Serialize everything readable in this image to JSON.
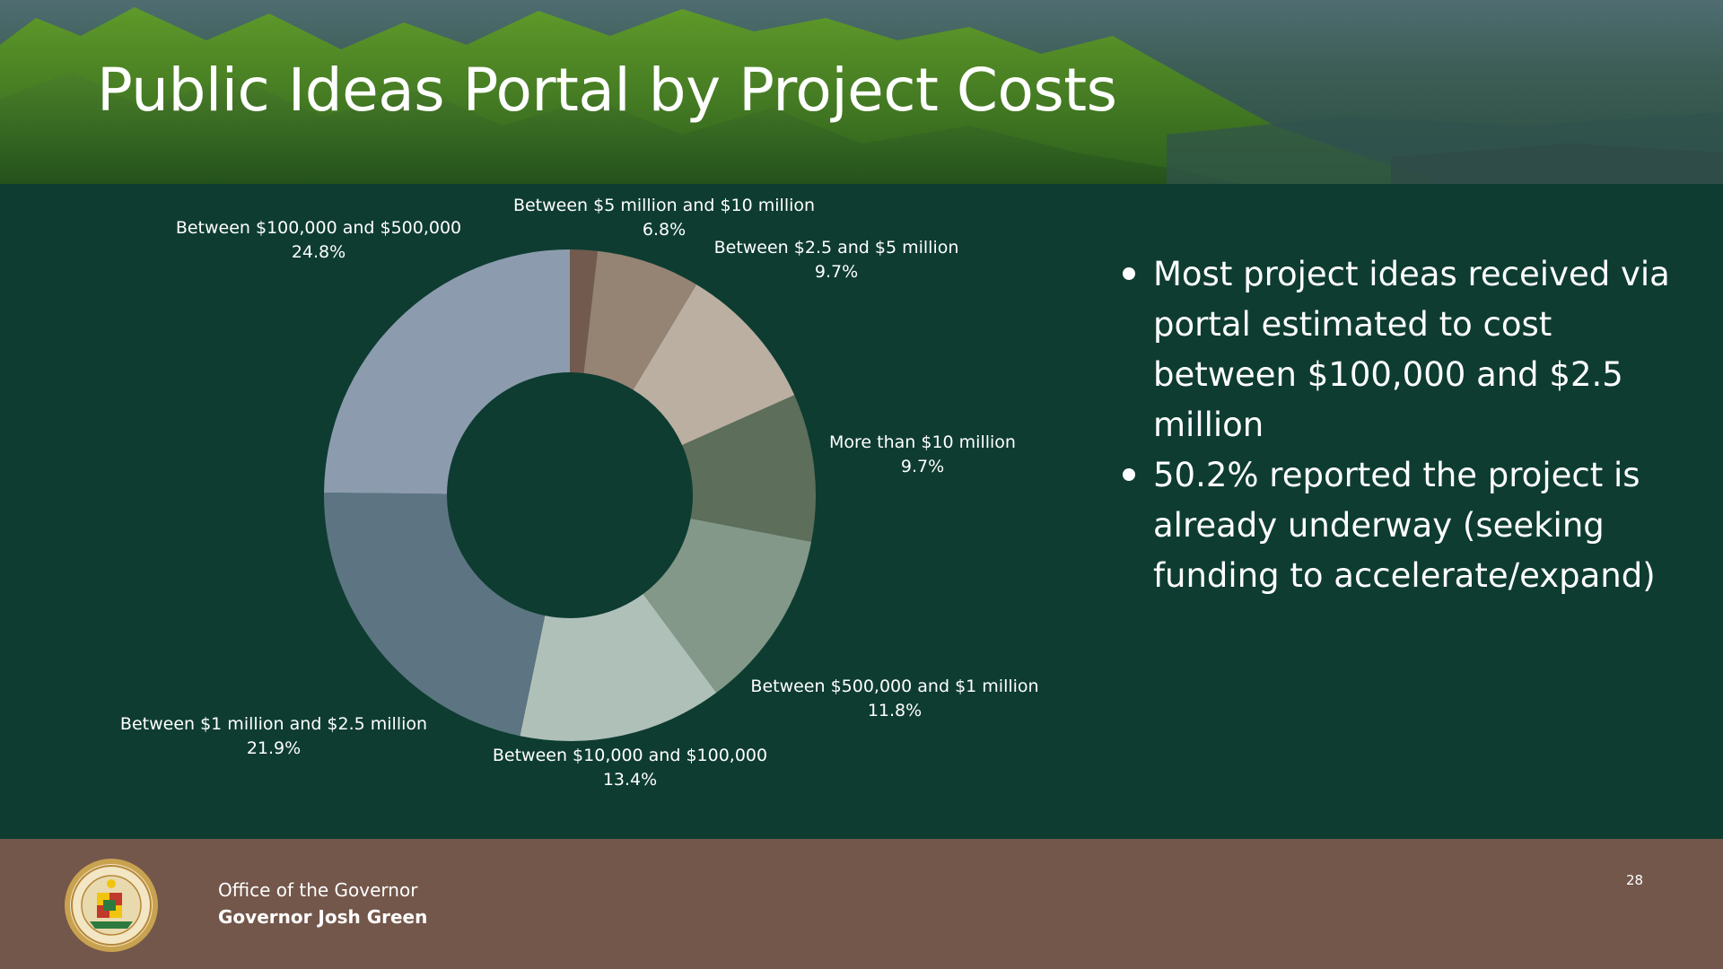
{
  "title": "Public Ideas Portal by Project Costs",
  "chart_data": {
    "type": "donut",
    "title": "",
    "slices": [
      {
        "label": "",
        "value": 1.8,
        "value_label": "",
        "color": "#735a4f"
      },
      {
        "label": "Between $5 million and $10 million",
        "value": 6.8,
        "value_label": "6.8%",
        "color": "#958373"
      },
      {
        "label": "Between $2.5 and $5 million",
        "value": 9.7,
        "value_label": "9.7%",
        "color": "#bbafa1"
      },
      {
        "label": "More than $10 million",
        "value": 9.7,
        "value_label": "9.7%",
        "color": "#5d6e5a"
      },
      {
        "label": "Between $500,000 and $1 million",
        "value": 11.8,
        "value_label": "11.8%",
        "color": "#839888"
      },
      {
        "label": "Between $10,000 and $100,000",
        "value": 13.4,
        "value_label": "13.4%",
        "color": "#afc0b9"
      },
      {
        "label": "Between $1 million and $2.5 million",
        "value": 21.9,
        "value_label": "21.9%",
        "color": "#5d7482"
      },
      {
        "label": "Between $100,000 and $500,000",
        "value": 24.8,
        "value_label": "24.8%",
        "color": "#8c9cae"
      }
    ]
  },
  "bullets": [
    "Most project ideas received via portal estimated to cost between $100,000 and $2.5 million",
    "50.2% reported the project is already underway (seeking funding to accelerate/expand)"
  ],
  "footer": {
    "office": "Office of the Governor",
    "governor": "Governor Josh Green",
    "page_number": "28"
  },
  "colors": {
    "background": "#0e3c31",
    "footer": "#73574b",
    "text": "#ffffff"
  }
}
